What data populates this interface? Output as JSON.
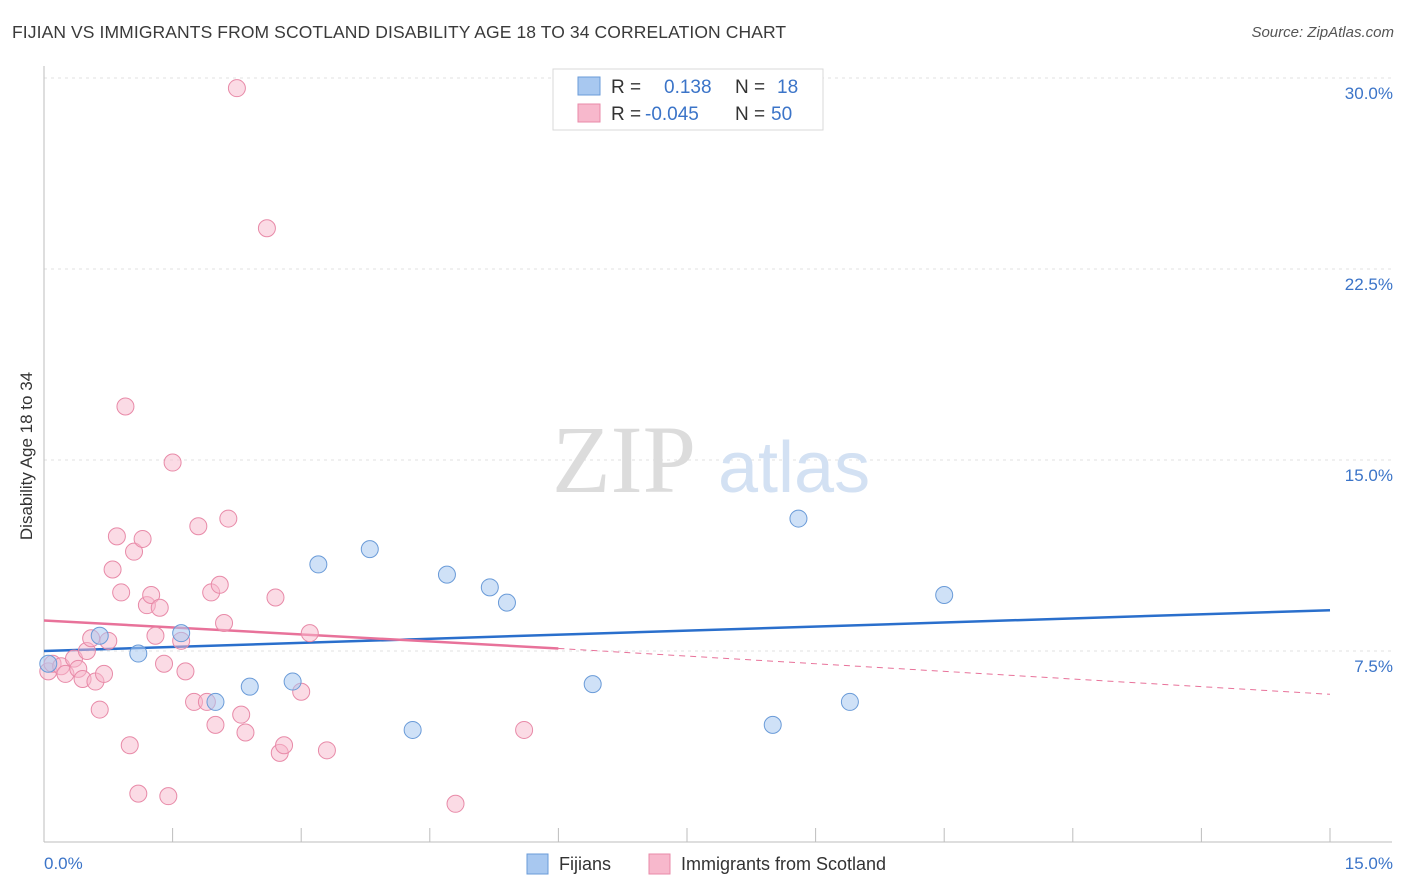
{
  "header": {
    "title": "FIJIAN VS IMMIGRANTS FROM SCOTLAND DISABILITY AGE 18 TO 34 CORRELATION CHART",
    "source": "Source: ZipAtlas.com"
  },
  "watermark": {
    "zip": "ZIP",
    "atlas": "atlas"
  },
  "legend_top": {
    "rows": [
      {
        "r_label": "R =",
        "r_value": "0.138",
        "n_label": "N =",
        "n_value": "18",
        "color": "#a8c8f0",
        "stroke": "#6a9bd8"
      },
      {
        "r_label": "R =",
        "r_value": "-0.045",
        "n_label": "N =",
        "n_value": "50",
        "color": "#f7b8cc",
        "stroke": "#e88aa8"
      }
    ]
  },
  "legend_bottom": {
    "items": [
      {
        "label": "Fijians",
        "color": "#a8c8f0",
        "stroke": "#6a9bd8"
      },
      {
        "label": "Immigrants from Scotland",
        "color": "#f7b8cc",
        "stroke": "#e88aa8"
      }
    ]
  },
  "colors": {
    "blue_line": "#2a6fcc",
    "pink_line": "#e8729a",
    "blue_fill": "rgba(168,200,240,0.55)",
    "blue_stroke": "#6a9bd8",
    "pink_fill": "rgba(247,184,204,0.5)",
    "pink_stroke": "#e88aa8",
    "tick_text": "#3b74c8",
    "grid": "#e2e2e2"
  },
  "chart_data": {
    "type": "scatter",
    "title": "FIJIAN VS IMMIGRANTS FROM SCOTLAND DISABILITY AGE 18 TO 34 CORRELATION CHART",
    "xlabel": "",
    "ylabel": "Disability Age 18 to 34",
    "xlim": [
      0,
      15
    ],
    "ylim": [
      0,
      31
    ],
    "x_tick_labels": [
      "0.0%",
      "15.0%"
    ],
    "y_ticks": [
      7.5,
      15.0,
      22.5,
      30.0
    ],
    "y_tick_labels": [
      "7.5%",
      "15.0%",
      "22.5%",
      "30.0%"
    ],
    "grid": true,
    "legend_position": "top-center",
    "series": [
      {
        "name": "Fijians",
        "points": [
          {
            "x": 0.05,
            "y": 7.0
          },
          {
            "x": 0.65,
            "y": 8.1
          },
          {
            "x": 1.1,
            "y": 7.4
          },
          {
            "x": 1.6,
            "y": 8.2
          },
          {
            "x": 2.0,
            "y": 5.5
          },
          {
            "x": 2.4,
            "y": 6.1
          },
          {
            "x": 2.9,
            "y": 6.3
          },
          {
            "x": 3.2,
            "y": 10.9
          },
          {
            "x": 3.8,
            "y": 11.5
          },
          {
            "x": 4.3,
            "y": 4.4
          },
          {
            "x": 4.7,
            "y": 10.5
          },
          {
            "x": 5.2,
            "y": 10.0
          },
          {
            "x": 5.4,
            "y": 9.4
          },
          {
            "x": 6.4,
            "y": 6.2
          },
          {
            "x": 8.5,
            "y": 4.6
          },
          {
            "x": 8.8,
            "y": 12.7
          },
          {
            "x": 9.4,
            "y": 5.5
          },
          {
            "x": 10.5,
            "y": 9.7
          }
        ],
        "trend": {
          "x": [
            0,
            15
          ],
          "y": [
            7.5,
            9.1
          ]
        }
      },
      {
        "name": "Immigrants from Scotland",
        "points": [
          {
            "x": 0.05,
            "y": 6.7
          },
          {
            "x": 0.1,
            "y": 7.0
          },
          {
            "x": 0.2,
            "y": 6.9
          },
          {
            "x": 0.25,
            "y": 6.6
          },
          {
            "x": 0.35,
            "y": 7.2
          },
          {
            "x": 0.4,
            "y": 6.8
          },
          {
            "x": 0.45,
            "y": 6.4
          },
          {
            "x": 0.5,
            "y": 7.5
          },
          {
            "x": 0.55,
            "y": 8.0
          },
          {
            "x": 0.6,
            "y": 6.3
          },
          {
            "x": 0.65,
            "y": 5.2
          },
          {
            "x": 0.7,
            "y": 6.6
          },
          {
            "x": 0.75,
            "y": 7.9
          },
          {
            "x": 0.8,
            "y": 10.7
          },
          {
            "x": 0.85,
            "y": 12.0
          },
          {
            "x": 0.9,
            "y": 9.8
          },
          {
            "x": 0.95,
            "y": 17.1
          },
          {
            "x": 1.0,
            "y": 3.8
          },
          {
            "x": 1.05,
            "y": 11.4
          },
          {
            "x": 1.15,
            "y": 11.9
          },
          {
            "x": 1.2,
            "y": 9.3
          },
          {
            "x": 1.25,
            "y": 9.7
          },
          {
            "x": 1.3,
            "y": 8.1
          },
          {
            "x": 1.35,
            "y": 9.2
          },
          {
            "x": 1.4,
            "y": 7.0
          },
          {
            "x": 1.45,
            "y": 1.8
          },
          {
            "x": 1.5,
            "y": 14.9
          },
          {
            "x": 1.6,
            "y": 7.9
          },
          {
            "x": 1.65,
            "y": 6.7
          },
          {
            "x": 1.75,
            "y": 5.5
          },
          {
            "x": 1.8,
            "y": 12.4
          },
          {
            "x": 1.9,
            "y": 5.5
          },
          {
            "x": 1.95,
            "y": 9.8
          },
          {
            "x": 2.0,
            "y": 4.6
          },
          {
            "x": 2.05,
            "y": 10.1
          },
          {
            "x": 2.1,
            "y": 8.6
          },
          {
            "x": 2.15,
            "y": 12.7
          },
          {
            "x": 2.25,
            "y": 29.6
          },
          {
            "x": 2.3,
            "y": 5.0
          },
          {
            "x": 2.35,
            "y": 4.3
          },
          {
            "x": 2.6,
            "y": 24.1
          },
          {
            "x": 2.7,
            "y": 9.6
          },
          {
            "x": 2.75,
            "y": 3.5
          },
          {
            "x": 2.8,
            "y": 3.8
          },
          {
            "x": 3.0,
            "y": 5.9
          },
          {
            "x": 3.1,
            "y": 8.2
          },
          {
            "x": 3.3,
            "y": 3.6
          },
          {
            "x": 4.8,
            "y": 1.5
          },
          {
            "x": 5.6,
            "y": 4.4
          },
          {
            "x": 1.1,
            "y": 1.9
          }
        ],
        "trend": {
          "x": [
            0,
            6
          ],
          "y": [
            8.7,
            7.6
          ]
        },
        "trend_dashed": {
          "x": [
            6,
            15
          ],
          "y": [
            7.6,
            5.8
          ]
        }
      }
    ]
  }
}
